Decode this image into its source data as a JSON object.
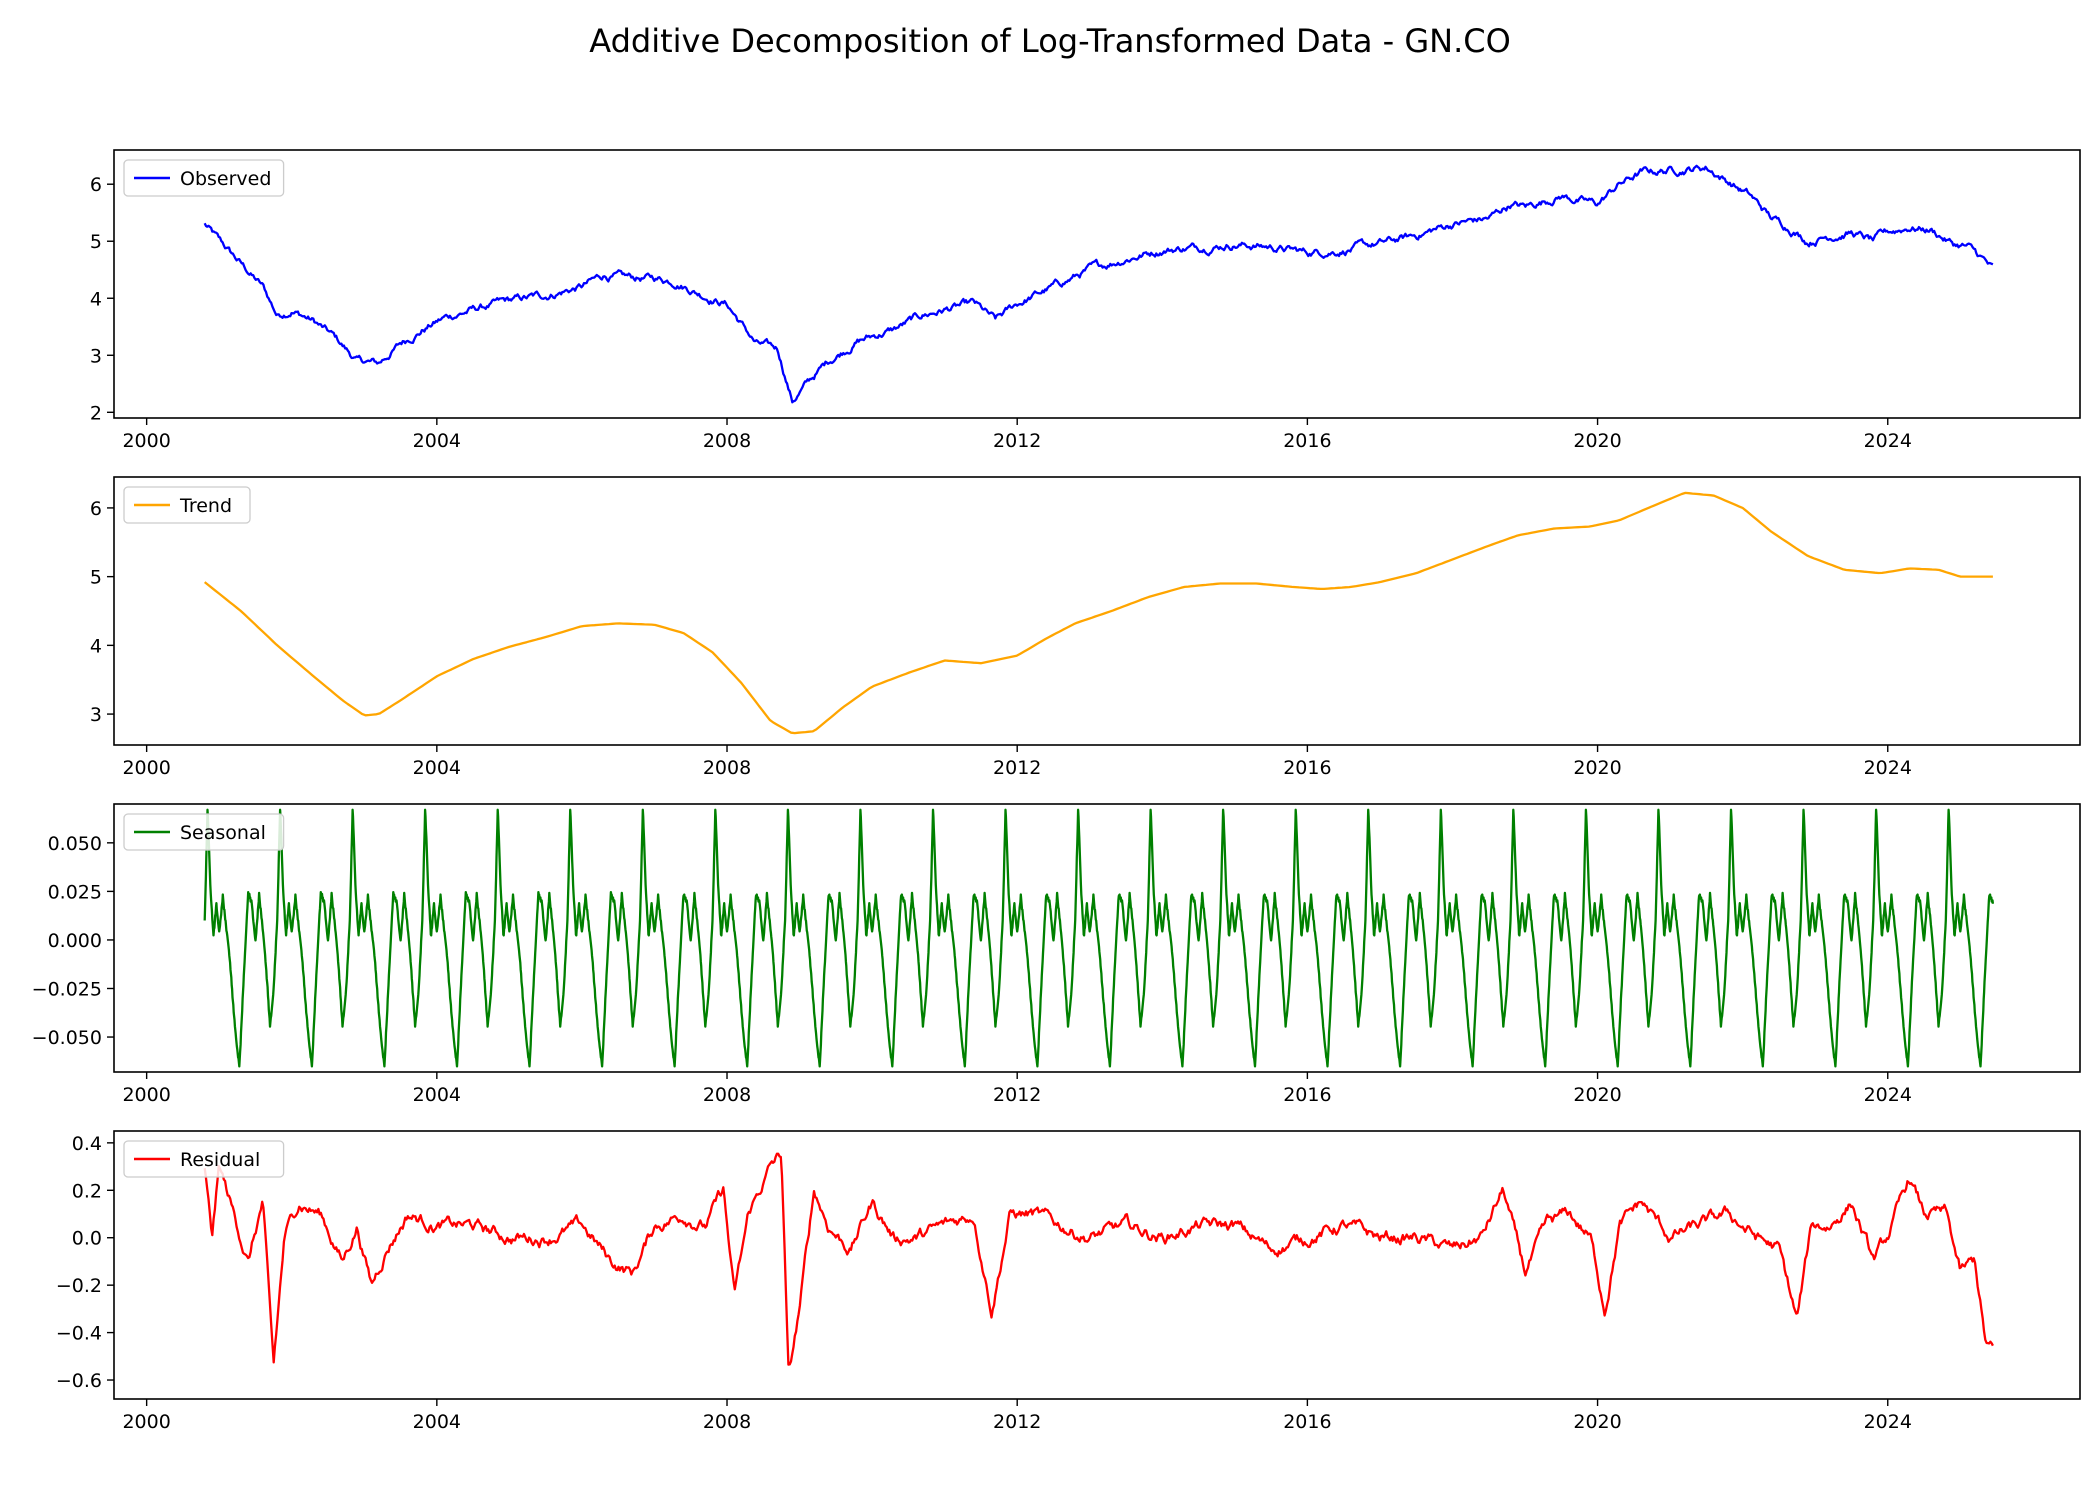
{
  "figure": {
    "title": "Additive Decomposition of Log-Transformed Data - GN.CO"
  },
  "chart_data": [
    {
      "type": "line",
      "legend": "Observed",
      "legend_position": "upper-left",
      "color": "#0000ff",
      "x_ticks": [
        "2000",
        "2004",
        "2008",
        "2012",
        "2016",
        "2020",
        "2024"
      ],
      "xlim": [
        1999.55,
        2026.65
      ],
      "y_ticks": [
        "2",
        "3",
        "4",
        "5",
        "6"
      ],
      "y_tick_values": [
        2,
        3,
        4,
        5,
        6
      ],
      "ylim": [
        1.9,
        6.6
      ],
      "noise": 0.09,
      "series": [
        {
          "name": "Observed",
          "x": [
            2000.8,
            2001.0,
            2001.3,
            2001.6,
            2001.8,
            2002.0,
            2002.3,
            2002.6,
            2002.9,
            2003.2,
            2003.5,
            2003.8,
            2004.1,
            2004.5,
            2005.0,
            2005.5,
            2006.0,
            2006.3,
            2006.6,
            2007.0,
            2007.3,
            2007.6,
            2008.0,
            2008.4,
            2008.7,
            2008.9,
            2009.1,
            2009.4,
            2009.8,
            2010.3,
            2010.7,
            2011.0,
            2011.4,
            2011.7,
            2012.0,
            2012.5,
            2013.0,
            2013.5,
            2014.0,
            2014.5,
            2015.0,
            2015.5,
            2016.0,
            2016.5,
            2017.0,
            2017.5,
            2018.0,
            2018.5,
            2018.8,
            2019.0,
            2019.5,
            2019.8,
            2020.0,
            2020.3,
            2020.6,
            2021.0,
            2021.5,
            2021.8,
            2022.1,
            2022.4,
            2022.7,
            2022.9,
            2023.2,
            2023.5,
            2023.8,
            2024.0,
            2024.3,
            2024.6,
            2024.9,
            2025.1,
            2025.3,
            2025.45
          ],
          "values": [
            5.3,
            5.0,
            4.6,
            4.2,
            3.7,
            3.8,
            3.6,
            3.3,
            2.9,
            2.85,
            3.2,
            3.45,
            3.65,
            3.8,
            3.95,
            4.05,
            4.2,
            4.4,
            4.35,
            4.35,
            4.3,
            4.1,
            3.9,
            3.2,
            3.1,
            2.2,
            2.5,
            2.9,
            3.25,
            3.45,
            3.7,
            3.8,
            3.9,
            3.6,
            3.9,
            4.2,
            4.5,
            4.7,
            4.85,
            4.9,
            4.95,
            4.9,
            4.8,
            4.85,
            4.95,
            5.1,
            5.3,
            5.4,
            5.65,
            5.6,
            5.8,
            5.7,
            5.65,
            6.0,
            6.2,
            6.25,
            6.3,
            6.05,
            5.8,
            5.4,
            5.2,
            5.0,
            5.1,
            5.15,
            5.0,
            5.15,
            5.25,
            5.2,
            4.95,
            4.9,
            4.7,
            4.5
          ]
        }
      ]
    },
    {
      "type": "line",
      "legend": "Trend",
      "legend_position": "upper-left",
      "color": "#ffa500",
      "x_ticks": [
        "2000",
        "2004",
        "2008",
        "2012",
        "2016",
        "2020",
        "2024"
      ],
      "xlim": [
        1999.55,
        2026.65
      ],
      "y_ticks": [
        "3",
        "4",
        "5",
        "6"
      ],
      "y_tick_values": [
        3,
        4,
        5,
        6
      ],
      "ylim": [
        2.55,
        6.45
      ],
      "noise": 0,
      "series": [
        {
          "name": "Trend",
          "x": [
            2000.8,
            2001.3,
            2001.8,
            2002.3,
            2002.7,
            2003.0,
            2003.2,
            2003.5,
            2004.0,
            2004.5,
            2005.0,
            2005.5,
            2006.0,
            2006.5,
            2007.0,
            2007.4,
            2007.8,
            2008.2,
            2008.6,
            2008.9,
            2009.2,
            2009.6,
            2010.0,
            2010.5,
            2011.0,
            2011.5,
            2012.0,
            2012.4,
            2012.8,
            2013.3,
            2013.8,
            2014.3,
            2014.8,
            2015.3,
            2015.8,
            2016.2,
            2016.6,
            2017.0,
            2017.5,
            2018.0,
            2018.5,
            2018.9,
            2019.4,
            2019.9,
            2020.3,
            2020.7,
            2021.2,
            2021.6,
            2022.0,
            2022.4,
            2022.9,
            2023.4,
            2023.9,
            2024.3,
            2024.7,
            2025.0,
            2025.45
          ],
          "values": [
            4.92,
            4.5,
            4.0,
            3.55,
            3.2,
            2.98,
            3.0,
            3.2,
            3.55,
            3.8,
            3.98,
            4.12,
            4.28,
            4.32,
            4.3,
            4.18,
            3.9,
            3.45,
            2.9,
            2.72,
            2.75,
            3.1,
            3.4,
            3.6,
            3.78,
            3.74,
            3.85,
            4.1,
            4.32,
            4.5,
            4.7,
            4.85,
            4.9,
            4.9,
            4.85,
            4.82,
            4.85,
            4.92,
            5.05,
            5.25,
            5.45,
            5.6,
            5.7,
            5.73,
            5.82,
            6.0,
            6.22,
            6.18,
            6.0,
            5.65,
            5.3,
            5.1,
            5.05,
            5.12,
            5.1,
            5.0,
            5.0
          ]
        }
      ]
    },
    {
      "type": "line",
      "legend": "Seasonal",
      "legend_position": "upper-left",
      "color": "#008000",
      "x_ticks": [
        "2000",
        "2004",
        "2008",
        "2012",
        "2016",
        "2020",
        "2024"
      ],
      "xlim": [
        1999.55,
        2026.65
      ],
      "y_ticks": [
        "0.050",
        "0.025",
        "0.000",
        "−0.025",
        "−0.050"
      ],
      "y_tick_values": [
        0.05,
        0.025,
        0.0,
        -0.025,
        -0.05
      ],
      "ylim": [
        -0.068,
        0.07
      ],
      "period": 1.0,
      "x_start": 2000.8,
      "x_end": 2025.45,
      "phase": [
        0.0,
        0.04,
        0.08,
        0.12,
        0.16,
        0.2,
        0.25,
        0.3,
        0.36,
        0.42,
        0.48,
        0.52,
        0.56,
        0.6,
        0.65,
        0.7,
        0.75,
        0.8,
        0.85,
        0.9,
        0.95,
        1.0
      ],
      "pattern": [
        0.01,
        0.064,
        0.02,
        0.0,
        0.023,
        0.01,
        0.023,
        0.0,
        -0.02,
        -0.04,
        -0.062,
        -0.035,
        -0.01,
        0.02,
        0.023,
        0.005,
        0.023,
        0.0,
        -0.02,
        -0.04,
        -0.02,
        0.01
      ],
      "series": [
        {
          "name": "Seasonal"
        }
      ]
    },
    {
      "type": "line",
      "legend": "Residual",
      "legend_position": "upper-left",
      "color": "#ff0000",
      "x_ticks": [
        "2000",
        "2004",
        "2008",
        "2012",
        "2016",
        "2020",
        "2024"
      ],
      "xlim": [
        1999.55,
        2026.65
      ],
      "y_ticks": [
        "0.4",
        "0.2",
        "0.0",
        "−0.2",
        "−0.4",
        "−0.6"
      ],
      "y_tick_values": [
        0.4,
        0.2,
        0.0,
        -0.2,
        -0.4,
        -0.6
      ],
      "ylim": [
        -0.68,
        0.45
      ],
      "noise": 0.035,
      "series": [
        {
          "name": "Residual",
          "x": [
            2000.8,
            2000.9,
            2001.0,
            2001.2,
            2001.4,
            2001.6,
            2001.75,
            2001.9,
            2002.1,
            2002.4,
            2002.7,
            2002.9,
            2003.1,
            2003.3,
            2003.6,
            2004.0,
            2004.5,
            2005.0,
            2005.5,
            2006.0,
            2006.4,
            2006.7,
            2007.0,
            2007.4,
            2007.7,
            2007.95,
            2008.1,
            2008.3,
            2008.6,
            2008.75,
            2008.85,
            2009.0,
            2009.2,
            2009.4,
            2009.7,
            2010.0,
            2010.3,
            2010.6,
            2011.0,
            2011.4,
            2011.65,
            2011.9,
            2012.2,
            2012.6,
            2013.0,
            2013.5,
            2014.0,
            2014.5,
            2015.0,
            2015.5,
            2016.0,
            2016.5,
            2017.0,
            2017.5,
            2018.0,
            2018.4,
            2018.7,
            2019.0,
            2019.3,
            2019.6,
            2019.9,
            2020.1,
            2020.3,
            2020.6,
            2021.0,
            2021.4,
            2021.8,
            2022.2,
            2022.5,
            2022.75,
            2022.95,
            2023.2,
            2023.5,
            2023.8,
            2024.0,
            2024.3,
            2024.5,
            2024.8,
            2025.0,
            2025.2,
            2025.35,
            2025.45
          ],
          "values": [
            0.3,
            0.0,
            0.3,
            0.1,
            -0.1,
            0.15,
            -0.55,
            0.0,
            0.15,
            0.1,
            -0.1,
            0.05,
            -0.2,
            -0.05,
            0.1,
            0.05,
            0.05,
            0.0,
            0.0,
            0.05,
            -0.1,
            -0.15,
            0.05,
            0.1,
            0.05,
            0.2,
            -0.25,
            0.1,
            0.3,
            0.35,
            -0.6,
            -0.3,
            0.2,
            0.05,
            -0.05,
            0.15,
            0.0,
            0.0,
            0.05,
            0.1,
            -0.3,
            0.1,
            0.1,
            0.05,
            0.0,
            0.05,
            0.0,
            0.05,
            0.05,
            -0.05,
            0.0,
            0.05,
            0.0,
            0.0,
            -0.05,
            0.0,
            0.2,
            -0.15,
            0.05,
            0.1,
            0.0,
            -0.3,
            0.05,
            0.15,
            0.0,
            0.05,
            0.1,
            0.0,
            -0.05,
            -0.35,
            0.05,
            0.05,
            0.15,
            -0.1,
            0.0,
            0.25,
            0.1,
            0.1,
            -0.15,
            -0.1,
            -0.45,
            -0.48
          ]
        }
      ]
    }
  ]
}
